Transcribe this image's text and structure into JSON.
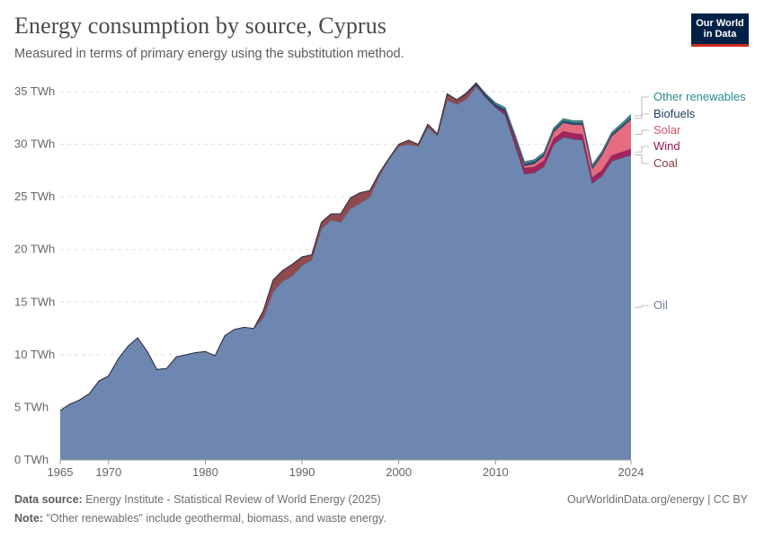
{
  "header": {
    "title": "Energy consumption by source, Cyprus",
    "subtitle": "Measured in terms of primary energy using the substitution method.",
    "logo_line1": "Our World",
    "logo_line2": "in Data"
  },
  "footer": {
    "source_label": "Data source:",
    "source_text": "Energy Institute - Statistical Review of World Energy (2025)",
    "note_label": "Note:",
    "note_text": "\"Other renewables\" include geothermal, biomass, and waste energy.",
    "link": "OurWorldinData.org/energy | CC BY"
  },
  "chart_data": {
    "type": "area",
    "stacked": true,
    "title": "Energy consumption by source, Cyprus",
    "subtitle": "Measured in terms of primary energy using the substitution method.",
    "x": [
      1965,
      1966,
      1967,
      1968,
      1969,
      1970,
      1971,
      1972,
      1973,
      1974,
      1975,
      1976,
      1977,
      1978,
      1979,
      1980,
      1981,
      1982,
      1983,
      1984,
      1985,
      1986,
      1987,
      1988,
      1989,
      1990,
      1991,
      1992,
      1993,
      1994,
      1995,
      1996,
      1997,
      1998,
      1999,
      2000,
      2001,
      2002,
      2003,
      2004,
      2005,
      2006,
      2007,
      2008,
      2009,
      2010,
      2011,
      2012,
      2013,
      2014,
      2015,
      2016,
      2017,
      2018,
      2019,
      2020,
      2021,
      2022,
      2023,
      2024
    ],
    "xlim": [
      1965,
      2024
    ],
    "ylim": [
      0,
      35
    ],
    "y_unit": "TWh",
    "y_ticks": [
      0,
      5,
      10,
      15,
      20,
      25,
      30,
      35
    ],
    "y_tick_labels": [
      "0 TWh",
      "5 TWh",
      "10 TWh",
      "15 TWh",
      "20 TWh",
      "25 TWh",
      "30 TWh",
      "35 TWh"
    ],
    "x_ticks": [
      1965,
      1970,
      1980,
      1990,
      2000,
      2010,
      2024
    ],
    "grid": "horizontal-dashed",
    "legend": "right",
    "series": [
      {
        "name": "Oil",
        "color": "#6d87b0",
        "values": [
          4.7,
          5.3,
          5.7,
          6.3,
          7.5,
          8.0,
          9.6,
          10.8,
          11.6,
          10.3,
          8.6,
          8.7,
          9.8,
          10.0,
          10.2,
          10.3,
          9.9,
          11.8,
          12.4,
          12.6,
          12.5,
          13.5,
          16.0,
          17.0,
          17.5,
          18.5,
          19.0,
          22.0,
          22.8,
          22.6,
          23.9,
          24.4,
          25.0,
          27.0,
          28.6,
          29.8,
          30.0,
          29.8,
          31.6,
          30.8,
          34.2,
          33.8,
          34.3,
          35.5,
          34.4,
          33.5,
          32.8,
          30.0,
          27.2,
          27.3,
          27.9,
          30.0,
          30.7,
          30.5,
          30.4,
          26.3,
          27.0,
          28.4,
          28.7,
          29.0
        ]
      },
      {
        "name": "Coal",
        "color": "#8f4a4f",
        "values": [
          0,
          0,
          0,
          0,
          0,
          0,
          0,
          0,
          0,
          0,
          0,
          0,
          0,
          0,
          0,
          0,
          0,
          0,
          0,
          0,
          0,
          0.7,
          1.1,
          1.0,
          1.1,
          0.8,
          0.5,
          0.6,
          0.6,
          0.8,
          1.0,
          1.0,
          0.6,
          0.3,
          0.1,
          0.2,
          0.4,
          0.2,
          0.3,
          0.2,
          0.6,
          0.4,
          0.5,
          0.2,
          0.1,
          0,
          0,
          0,
          0,
          0,
          0,
          0,
          0,
          0,
          0,
          0,
          0,
          0,
          0,
          0
        ]
      },
      {
        "name": "Wind",
        "color": "#a2245f",
        "values": [
          0,
          0,
          0,
          0,
          0,
          0,
          0,
          0,
          0,
          0,
          0,
          0,
          0,
          0,
          0,
          0,
          0,
          0,
          0,
          0,
          0,
          0,
          0,
          0,
          0,
          0,
          0,
          0,
          0,
          0,
          0,
          0,
          0,
          0,
          0,
          0,
          0,
          0,
          0,
          0,
          0,
          0,
          0,
          0,
          0,
          0.1,
          0.3,
          0.5,
          0.55,
          0.55,
          0.55,
          0.55,
          0.55,
          0.55,
          0.55,
          0.55,
          0.55,
          0.55,
          0.55,
          0.55
        ]
      },
      {
        "name": "Solar",
        "color": "#e56b80",
        "values": [
          0,
          0,
          0,
          0,
          0,
          0,
          0,
          0,
          0,
          0,
          0,
          0,
          0,
          0,
          0,
          0,
          0,
          0,
          0,
          0,
          0,
          0,
          0,
          0,
          0,
          0,
          0,
          0,
          0,
          0,
          0,
          0,
          0,
          0,
          0,
          0,
          0,
          0,
          0,
          0,
          0,
          0,
          0,
          0,
          0,
          0,
          0,
          0.1,
          0.2,
          0.3,
          0.4,
          0.6,
          0.8,
          0.8,
          0.9,
          0.8,
          1.4,
          1.8,
          2.3,
          2.8
        ]
      },
      {
        "name": "Biofuels",
        "color": "#24486e",
        "values": [
          0,
          0,
          0,
          0,
          0,
          0,
          0,
          0,
          0,
          0,
          0,
          0,
          0,
          0,
          0,
          0,
          0,
          0,
          0,
          0,
          0,
          0,
          0,
          0,
          0,
          0,
          0,
          0,
          0,
          0,
          0,
          0,
          0,
          0,
          0,
          0,
          0,
          0,
          0,
          0,
          0,
          0.05,
          0.1,
          0.15,
          0.2,
          0.2,
          0.2,
          0.2,
          0.2,
          0.2,
          0.2,
          0.2,
          0.2,
          0.2,
          0.2,
          0.2,
          0.2,
          0.2,
          0.2,
          0.2
        ]
      },
      {
        "name": "Other renewables",
        "color": "#3b8f8f",
        "values": [
          0,
          0,
          0,
          0,
          0,
          0,
          0,
          0,
          0,
          0,
          0,
          0,
          0,
          0,
          0,
          0,
          0,
          0,
          0,
          0,
          0,
          0,
          0,
          0,
          0,
          0,
          0,
          0,
          0,
          0,
          0,
          0,
          0,
          0,
          0,
          0,
          0,
          0,
          0,
          0,
          0,
          0,
          0,
          0,
          0.1,
          0.15,
          0.2,
          0.2,
          0.2,
          0.2,
          0.2,
          0.2,
          0.2,
          0.2,
          0.2,
          0.2,
          0.2,
          0.2,
          0.2,
          0.3
        ]
      }
    ],
    "legend_order": [
      "Other renewables",
      "Biofuels",
      "Solar",
      "Wind",
      "Coal",
      "Oil"
    ],
    "legend_colors": {
      "Other renewables": "#2a8a8a",
      "Biofuels": "#1c3a5e",
      "Solar": "#d94f6a",
      "Wind": "#9b1654",
      "Coal": "#883a3f",
      "Oil": "#6e7c94"
    }
  }
}
